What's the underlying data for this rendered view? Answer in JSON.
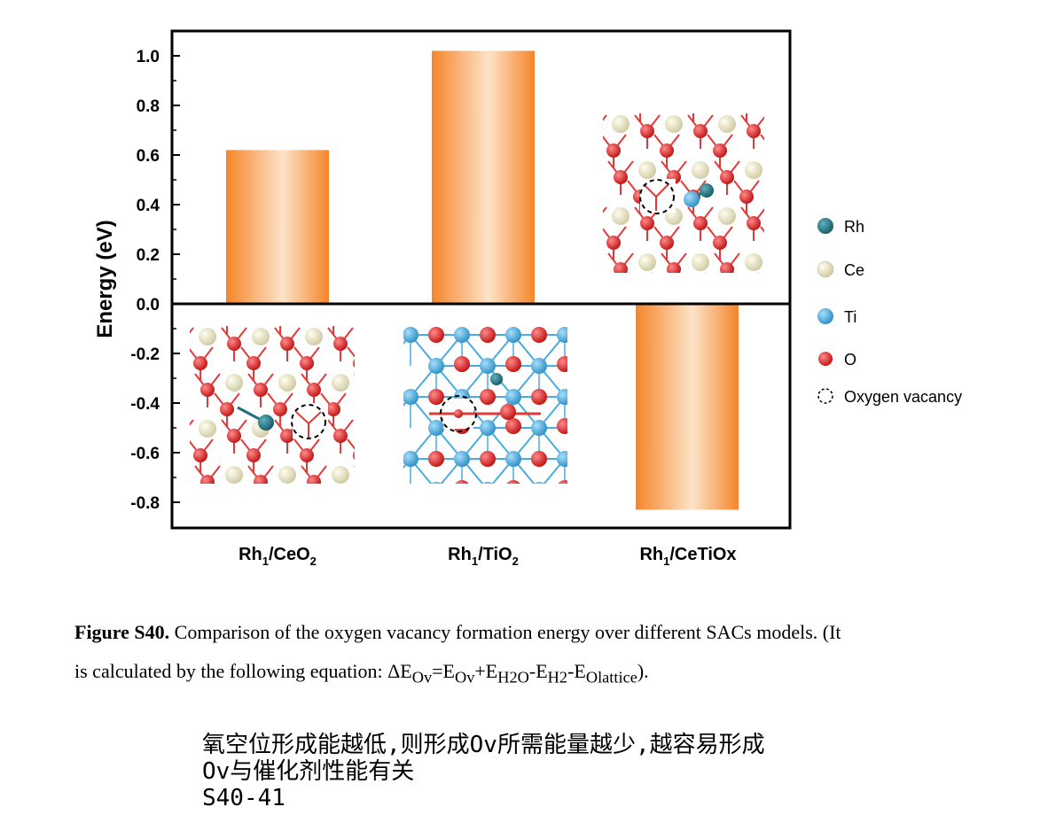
{
  "chart_data": {
    "type": "bar",
    "categories": [
      "Rh1/CeO2",
      "Rh1/TiO2",
      "Rh1/CeTiOx"
    ],
    "values": [
      0.62,
      1.02,
      -0.83
    ],
    "xlabel": "",
    "ylabel": "Energy (eV)",
    "ylim": [
      -0.9,
      1.1
    ],
    "yticks": [
      "1.0",
      "0.8",
      "0.6",
      "0.4",
      "0.2",
      "0.0",
      "-0.2",
      "-0.4",
      "-0.6",
      "-0.8"
    ],
    "ytick_values": [
      1.0,
      0.8,
      0.6,
      0.4,
      0.2,
      0.0,
      -0.2,
      -0.4,
      -0.6,
      -0.8
    ],
    "grid": false,
    "legend": {
      "placement": "right",
      "entries": [
        {
          "label": "Rh",
          "color": "#1f6e7e"
        },
        {
          "label": "Ce",
          "color": "#efeccb"
        },
        {
          "label": "Ti",
          "color": "#45ade0"
        },
        {
          "label": "O",
          "color": "#dc2222"
        },
        {
          "label": "Oxygen vacancy",
          "color": "none"
        }
      ]
    },
    "bar_gradient": {
      "edge": "#f5852a",
      "center": "#fde3c8"
    }
  },
  "category_labels": [
    {
      "main": "Rh",
      "sub1": "1",
      "rest": "/CeO",
      "sub2": "2"
    },
    {
      "main": "Rh",
      "sub1": "1",
      "rest": "/TiO",
      "sub2": "2"
    },
    {
      "main": "Rh",
      "sub1": "1",
      "rest": "/CeTiOx",
      "sub2": ""
    }
  ],
  "caption": {
    "label": "Figure S40.",
    "text_line1": " Comparison of the oxygen vacancy formation energy over different SACs models. (It",
    "text_line2_prefix": "is calculated by the following equation: ΔE",
    "sub_ov1": "Ov",
    "eq1": "=E",
    "sub_ov2": "Ov",
    "eq2": "+E",
    "sub_h2o": "H2O",
    "eq3": "-E",
    "sub_h2": "H2",
    "eq4": "-E",
    "sub_olattice": "Olattice",
    "eq_end": ")."
  },
  "notes": [
    "氧空位形成能越低,则形成Ov所需能量越少,越容易形成",
    "Ov与催化剂性能有关",
    "S40-41"
  ]
}
